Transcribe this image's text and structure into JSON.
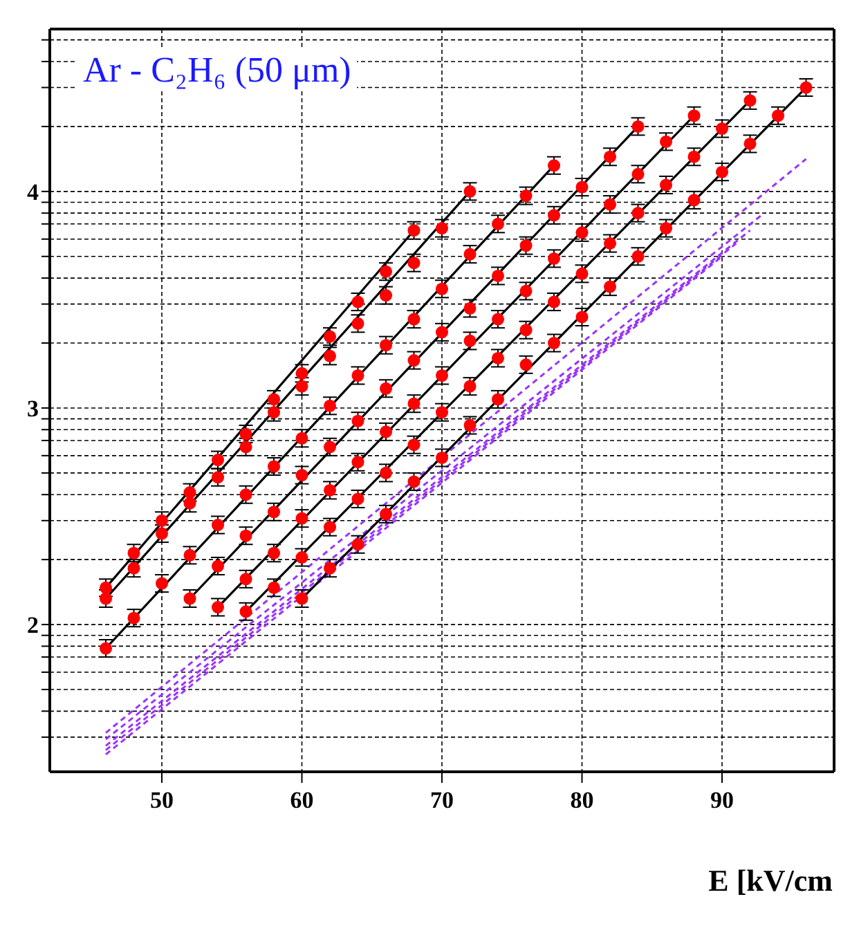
{
  "chart_data": {
    "type": "scatter",
    "title": "Ar - C₂H₆  (50 μm)",
    "xlabel": "E [kV/cm",
    "xlim": [
      42,
      98
    ],
    "xticks": [
      50,
      60,
      70,
      80,
      90
    ],
    "ylim": [
      1.32,
      4.75
    ],
    "yticks": [
      {
        "value": 1.48,
        "label": null
      },
      {
        "value": 1.6,
        "label": null
      },
      {
        "value": 1.7,
        "label": null
      },
      {
        "value": 1.78,
        "label": null
      },
      {
        "value": 1.85,
        "label": null
      },
      {
        "value": 1.9,
        "label": null
      },
      {
        "value": 1.95,
        "label": null
      },
      2,
      {
        "value": 2.3,
        "label": null
      },
      {
        "value": 2.48,
        "label": null
      },
      {
        "value": 2.6,
        "label": null
      },
      {
        "value": 2.7,
        "label": null
      },
      {
        "value": 2.78,
        "label": null
      },
      {
        "value": 2.85,
        "label": null
      },
      {
        "value": 2.9,
        "label": null
      },
      {
        "value": 2.95,
        "label": null
      },
      3,
      {
        "value": 3.3,
        "label": null
      },
      {
        "value": 3.48,
        "label": null
      },
      {
        "value": 3.6,
        "label": null
      },
      {
        "value": 3.7,
        "label": null
      },
      {
        "value": 3.78,
        "label": null
      },
      {
        "value": 3.85,
        "label": null
      },
      {
        "value": 3.9,
        "label": null
      },
      {
        "value": 3.95,
        "label": null
      },
      4,
      {
        "value": 4.3,
        "label": null
      },
      {
        "value": 4.48,
        "label": null
      },
      {
        "value": 4.6,
        "label": null
      },
      {
        "value": 4.7,
        "label": null
      }
    ],
    "grid": true,
    "series": [
      {
        "type": "line",
        "color": "#9933ff",
        "line_style": "dashed",
        "marker": "none",
        "x": [
          46,
          96
        ],
        "values": [
          1.5,
          4.15
        ]
      },
      {
        "type": "line",
        "color": "#9933ff",
        "line_style": "dashed",
        "marker": "none",
        "x": [
          46,
          93
        ],
        "values": [
          1.47,
          3.9
        ]
      },
      {
        "type": "line",
        "color": "#9933ff",
        "line_style": "dashed",
        "marker": "none",
        "x": [
          46,
          92
        ],
        "values": [
          1.44,
          3.82
        ]
      },
      {
        "type": "line",
        "color": "#9933ff",
        "line_style": "dashed",
        "marker": "none",
        "x": [
          46,
          91
        ],
        "values": [
          1.42,
          3.76
        ]
      },
      {
        "type": "line",
        "color": "#9933ff",
        "line_style": "dashed",
        "marker": "none",
        "x": [
          46,
          90
        ],
        "values": [
          1.4,
          3.7
        ]
      },
      {
        "type": "line",
        "color": "#000000",
        "line_style": "solid",
        "marker": "none",
        "x": [
          46,
          68
        ],
        "values": [
          2.17,
          3.82
        ]
      },
      {
        "type": "line",
        "color": "#000000",
        "line_style": "solid",
        "marker": "none",
        "x": [
          46,
          72
        ],
        "values": [
          2.12,
          4.0
        ]
      },
      {
        "type": "line",
        "color": "#000000",
        "line_style": "solid",
        "marker": "none",
        "x": [
          46,
          78
        ],
        "values": [
          1.89,
          4.12
        ]
      },
      {
        "type": "line",
        "color": "#000000",
        "line_style": "solid",
        "marker": "none",
        "x": [
          52,
          84
        ],
        "values": [
          2.12,
          4.3
        ]
      },
      {
        "type": "line",
        "color": "#000000",
        "line_style": "solid",
        "marker": "none",
        "x": [
          54,
          88
        ],
        "values": [
          2.08,
          4.35
        ]
      },
      {
        "type": "line",
        "color": "#000000",
        "line_style": "solid",
        "marker": "none",
        "x": [
          56,
          92
        ],
        "values": [
          2.06,
          4.42
        ]
      },
      {
        "type": "line",
        "color": "#000000",
        "line_style": "solid",
        "marker": "none",
        "x": [
          60,
          96
        ],
        "values": [
          2.12,
          4.48
        ]
      },
      {
        "color": "#ff0000",
        "marker": "circle",
        "x": [
          46,
          48,
          50,
          52,
          54,
          56,
          58,
          60,
          62,
          64,
          66,
          68
        ],
        "values": [
          2.17,
          2.33,
          2.48,
          2.61,
          2.76,
          2.88,
          3.04,
          3.16,
          3.33,
          3.49,
          3.63,
          3.82
        ],
        "errors": [
          0.04,
          0.04,
          0.04,
          0.04,
          0.04,
          0.04,
          0.04,
          0.04,
          0.04,
          0.04,
          0.04,
          0.04
        ]
      },
      {
        "color": "#ff0000",
        "marker": "circle",
        "x": [
          46,
          48,
          50,
          52,
          54,
          56,
          58,
          60,
          62,
          64,
          66,
          68,
          70,
          72
        ],
        "values": [
          2.12,
          2.26,
          2.42,
          2.56,
          2.68,
          2.82,
          2.98,
          3.1,
          3.24,
          3.39,
          3.52,
          3.67,
          3.83,
          4.0
        ],
        "errors": [
          0.04,
          0.04,
          0.04,
          0.04,
          0.04,
          0.04,
          0.04,
          0.04,
          0.04,
          0.04,
          0.04,
          0.04,
          0.04,
          0.04
        ]
      },
      {
        "color": "#ff0000",
        "marker": "circle",
        "x": [
          46,
          48,
          50,
          52,
          54,
          56,
          58,
          60,
          62,
          64,
          66,
          68,
          70,
          72,
          74,
          76,
          78
        ],
        "values": [
          1.89,
          2.03,
          2.19,
          2.32,
          2.46,
          2.6,
          2.73,
          2.86,
          3.01,
          3.15,
          3.29,
          3.41,
          3.55,
          3.71,
          3.85,
          3.98,
          4.12
        ],
        "errors": [
          0.04,
          0.04,
          0.04,
          0.04,
          0.04,
          0.04,
          0.04,
          0.04,
          0.04,
          0.04,
          0.04,
          0.04,
          0.04,
          0.04,
          0.04,
          0.04,
          0.04
        ]
      },
      {
        "color": "#ff0000",
        "marker": "circle",
        "x": [
          52,
          54,
          56,
          58,
          60,
          62,
          64,
          66,
          68,
          70,
          72,
          74,
          76,
          78,
          80,
          82,
          84
        ],
        "values": [
          2.12,
          2.27,
          2.41,
          2.52,
          2.69,
          2.82,
          2.94,
          3.09,
          3.22,
          3.35,
          3.46,
          3.61,
          3.75,
          3.89,
          4.02,
          4.16,
          4.3
        ],
        "errors": [
          0.04,
          0.04,
          0.04,
          0.04,
          0.04,
          0.04,
          0.04,
          0.04,
          0.04,
          0.04,
          0.04,
          0.04,
          0.04,
          0.04,
          0.04,
          0.04,
          0.04
        ]
      },
      {
        "color": "#ff0000",
        "marker": "circle",
        "x": [
          54,
          56,
          58,
          60,
          62,
          64,
          66,
          68,
          70,
          72,
          74,
          76,
          78,
          80,
          82,
          84,
          86,
          88
        ],
        "values": [
          2.08,
          2.21,
          2.33,
          2.49,
          2.62,
          2.75,
          2.89,
          3.02,
          3.15,
          3.31,
          3.41,
          3.54,
          3.69,
          3.81,
          3.94,
          4.08,
          4.23,
          4.35
        ],
        "errors": [
          0.04,
          0.04,
          0.04,
          0.04,
          0.04,
          0.04,
          0.04,
          0.04,
          0.04,
          0.04,
          0.04,
          0.04,
          0.04,
          0.04,
          0.04,
          0.04,
          0.04,
          0.04
        ]
      },
      {
        "color": "#ff0000",
        "marker": "circle",
        "x": [
          56,
          58,
          60,
          62,
          64,
          66,
          68,
          70,
          72,
          74,
          76,
          78,
          80,
          82,
          84,
          86,
          88,
          90,
          92
        ],
        "values": [
          2.06,
          2.17,
          2.31,
          2.45,
          2.58,
          2.7,
          2.83,
          2.98,
          3.1,
          3.23,
          3.36,
          3.49,
          3.62,
          3.76,
          3.9,
          4.03,
          4.16,
          4.29,
          4.42
        ],
        "errors": [
          0.04,
          0.04,
          0.04,
          0.04,
          0.04,
          0.04,
          0.04,
          0.04,
          0.04,
          0.04,
          0.04,
          0.04,
          0.04,
          0.04,
          0.04,
          0.04,
          0.04,
          0.04,
          0.04
        ]
      },
      {
        "color": "#ff0000",
        "marker": "circle",
        "x": [
          60,
          62,
          64,
          66,
          68,
          70,
          72,
          74,
          76,
          78,
          80,
          82,
          84,
          86,
          88,
          90,
          92,
          94,
          96
        ],
        "values": [
          2.12,
          2.26,
          2.37,
          2.51,
          2.66,
          2.77,
          2.92,
          3.04,
          3.2,
          3.3,
          3.42,
          3.56,
          3.7,
          3.83,
          3.96,
          4.09,
          4.22,
          4.35,
          4.48
        ],
        "errors": [
          0.04,
          0.04,
          0.04,
          0.04,
          0.04,
          0.04,
          0.04,
          0.04,
          0.04,
          0.04,
          0.04,
          0.04,
          0.04,
          0.04,
          0.04,
          0.04,
          0.04,
          0.04,
          0.04
        ]
      }
    ]
  }
}
